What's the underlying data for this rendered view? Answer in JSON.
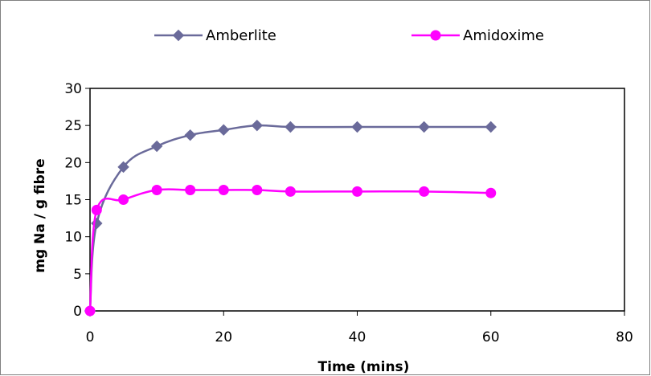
{
  "chart_data": {
    "type": "line",
    "xlabel": "Time (mins)",
    "ylabel": "mg Na / g fibre",
    "xlim": [
      0,
      80
    ],
    "ylim": [
      0,
      30
    ],
    "xticks": [
      0,
      20,
      40,
      60,
      80
    ],
    "yticks": [
      0,
      5,
      10,
      15,
      20,
      25,
      30
    ],
    "grid": false,
    "legend_position": "top",
    "series": [
      {
        "name": "Amberlite",
        "color": "#6A6A9A",
        "marker": "diamond",
        "x": [
          0,
          1,
          5,
          10,
          15,
          20,
          25,
          30,
          40,
          50,
          60
        ],
        "y": [
          0,
          11.8,
          19.4,
          22.2,
          23.7,
          24.4,
          25.0,
          24.8,
          24.8,
          24.8,
          24.8
        ]
      },
      {
        "name": "Amidoxime",
        "color": "#FF00FF",
        "marker": "circle",
        "x": [
          0,
          1,
          5,
          10,
          15,
          20,
          25,
          30,
          40,
          50,
          60
        ],
        "y": [
          0,
          13.6,
          15.0,
          16.3,
          16.3,
          16.3,
          16.3,
          16.1,
          16.1,
          16.1,
          15.9
        ]
      }
    ]
  }
}
